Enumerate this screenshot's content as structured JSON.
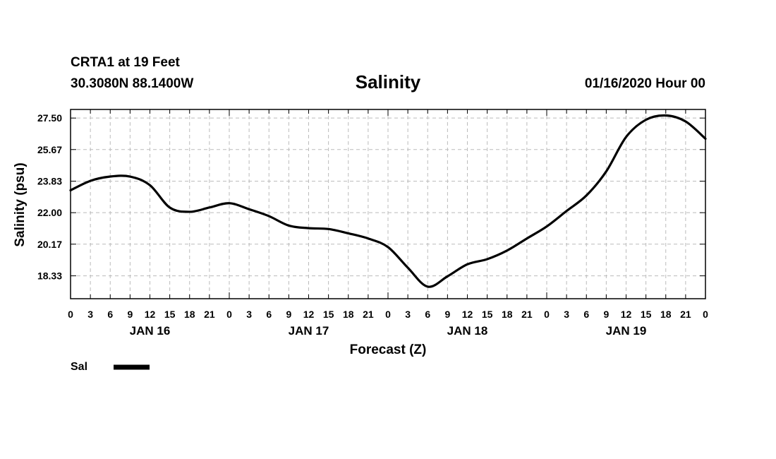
{
  "chart_data": {
    "type": "line",
    "header": {
      "station": "CRTA1 at 19 Feet",
      "location": "30.3080N 88.1400W",
      "timestamp": "01/16/2020 Hour 00"
    },
    "title": "Salinity",
    "xlabel": "Forecast (Z)",
    "ylabel": "Salinity (psu)",
    "ylim": [
      17.0,
      28.0
    ],
    "xlim": [
      0,
      96
    ],
    "grid": true,
    "x_tick_labels": [
      "0",
      "3",
      "6",
      "9",
      "12",
      "15",
      "18",
      "21",
      "0",
      "3",
      "6",
      "9",
      "12",
      "15",
      "18",
      "21",
      "0",
      "3",
      "6",
      "9",
      "12",
      "15",
      "18",
      "21",
      "0",
      "3",
      "6",
      "9",
      "12",
      "15",
      "18",
      "21",
      "0"
    ],
    "x_day_labels": [
      {
        "label": "JAN 16",
        "hour": 12
      },
      {
        "label": "JAN 17",
        "hour": 36
      },
      {
        "label": "JAN 18",
        "hour": 60
      },
      {
        "label": "JAN 19",
        "hour": 84
      }
    ],
    "y_tick_labels": [
      "27.50",
      "25.67",
      "23.83",
      "22.00",
      "20.17",
      "18.33"
    ],
    "y_ticks": [
      27.5,
      25.67,
      23.83,
      22.0,
      20.17,
      18.33
    ],
    "legend": {
      "placement": "bottom-left",
      "entries": [
        {
          "name": "Sal",
          "color": "#000000"
        }
      ]
    },
    "series": [
      {
        "name": "Sal",
        "color": "#000000",
        "x": [
          0,
          3,
          6,
          9,
          12,
          15,
          18,
          21,
          24,
          27,
          30,
          33,
          36,
          39,
          42,
          45,
          48,
          51,
          54,
          57,
          60,
          63,
          66,
          69,
          72,
          75,
          78,
          81,
          84,
          87,
          90,
          93,
          96
        ],
        "values": [
          23.3,
          23.85,
          24.1,
          24.1,
          23.6,
          22.3,
          22.05,
          22.3,
          22.55,
          22.2,
          21.8,
          21.25,
          21.1,
          21.05,
          20.8,
          20.5,
          20.0,
          18.8,
          17.7,
          18.3,
          19.0,
          19.3,
          19.8,
          20.5,
          21.2,
          22.1,
          23.0,
          24.4,
          26.4,
          27.4,
          27.65,
          27.3,
          26.3
        ]
      }
    ]
  }
}
